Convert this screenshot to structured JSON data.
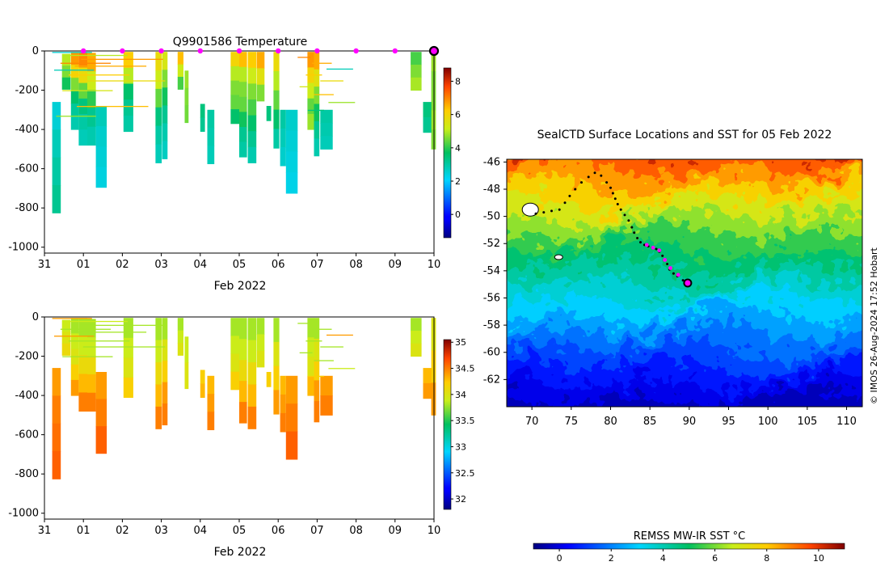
{
  "chart_data": [
    {
      "type": "heatmap",
      "panel": "temperature-profile",
      "title": "Q9901586  Temperature",
      "xlabel": "Feb 2022",
      "ylabel": "",
      "x_tick_labels": [
        "31",
        "01",
        "02",
        "03",
        "04",
        "05",
        "06",
        "07",
        "08",
        "09",
        "10"
      ],
      "x_range_days": [
        0,
        10
      ],
      "y_ticks": [
        0,
        -200,
        -400,
        -600,
        -800,
        -1000
      ],
      "ylim": [
        -1030,
        0
      ],
      "colorbar": {
        "range": [
          -1.4,
          8.8
        ],
        "ticks": [
          0,
          2,
          4,
          6,
          8
        ],
        "colormap": "jet"
      },
      "surfacing_markers_day": [
        1,
        2,
        3,
        4,
        5,
        6,
        7,
        8,
        9
      ],
      "current_position_day": 10,
      "profiles": [
        {
          "t": 0.2,
          "w": 0.22,
          "top": -260,
          "bottom": -825,
          "v": [
            2.5,
            2.8,
            3.0,
            3.2
          ]
        },
        {
          "t": 0.45,
          "w": 0.22,
          "top": -15,
          "bottom": -195,
          "v": [
            5.0,
            4.6,
            3.8
          ]
        },
        {
          "t": 0.68,
          "w": 0.2,
          "top": -5,
          "bottom": -400,
          "v": [
            6.8,
            6.0,
            4.6,
            3.6,
            3.1,
            2.9
          ]
        },
        {
          "t": 0.88,
          "w": 0.22,
          "top": -5,
          "bottom": -480,
          "v": [
            7.0,
            5.8,
            4.4,
            3.4,
            3.0,
            2.8
          ]
        },
        {
          "t": 1.1,
          "w": 0.22,
          "top": -10,
          "bottom": -480,
          "v": [
            6.6,
            5.2,
            4.0,
            3.2,
            2.9
          ]
        },
        {
          "t": 1.32,
          "w": 0.28,
          "top": -280,
          "bottom": -695,
          "v": [
            2.8,
            2.6,
            2.5,
            2.4
          ]
        },
        {
          "t": 2.03,
          "w": 0.25,
          "top": -5,
          "bottom": -410,
          "v": [
            6.2,
            5.0,
            3.6,
            3.2,
            3.0
          ]
        },
        {
          "t": 2.85,
          "w": 0.16,
          "top": -5,
          "bottom": -570,
          "v": [
            5.8,
            5.2,
            4.4,
            3.4,
            3.0,
            2.8
          ]
        },
        {
          "t": 3.02,
          "w": 0.14,
          "top": -5,
          "bottom": -550,
          "v": [
            5.4,
            4.6,
            3.8,
            3.2,
            2.9,
            2.7
          ]
        },
        {
          "t": 3.42,
          "w": 0.15,
          "top": -5,
          "bottom": -195,
          "v": [
            6.4,
            5.2,
            4.2
          ]
        },
        {
          "t": 3.6,
          "w": 0.1,
          "top": -100,
          "bottom": -365,
          "v": [
            4.8,
            4.6,
            4.5
          ]
        },
        {
          "t": 4.0,
          "w": 0.12,
          "top": -270,
          "bottom": -410,
          "v": [
            3.4,
            3.2
          ]
        },
        {
          "t": 4.18,
          "w": 0.18,
          "top": -300,
          "bottom": -575,
          "v": [
            3.0,
            2.9,
            2.8
          ]
        },
        {
          "t": 4.78,
          "w": 0.22,
          "top": -5,
          "bottom": -370,
          "v": [
            6.0,
            5.0,
            4.6,
            4.4,
            3.6
          ]
        },
        {
          "t": 5.0,
          "w": 0.2,
          "top": -5,
          "bottom": -540,
          "v": [
            6.4,
            5.0,
            4.6,
            4.4,
            3.8,
            3.2,
            3.0
          ]
        },
        {
          "t": 5.22,
          "w": 0.22,
          "top": -5,
          "bottom": -570,
          "v": [
            6.2,
            5.2,
            4.6,
            4.2,
            3.6,
            3.2,
            2.9
          ]
        },
        {
          "t": 5.45,
          "w": 0.2,
          "top": -5,
          "bottom": -255,
          "v": [
            6.6,
            5.6,
            4.6
          ]
        },
        {
          "t": 5.7,
          "w": 0.12,
          "top": -280,
          "bottom": -355,
          "v": [
            3.4
          ]
        },
        {
          "t": 5.88,
          "w": 0.15,
          "top": -5,
          "bottom": -495,
          "v": [
            5.8,
            5.0,
            4.4,
            3.6,
            3.0
          ]
        },
        {
          "t": 6.05,
          "w": 0.15,
          "top": -300,
          "bottom": -585,
          "v": [
            3.0,
            2.8,
            2.6
          ]
        },
        {
          "t": 6.2,
          "w": 0.3,
          "top": -300,
          "bottom": -725,
          "v": [
            2.6,
            2.5,
            2.4,
            2.3
          ]
        },
        {
          "t": 6.75,
          "w": 0.18,
          "top": -5,
          "bottom": -400,
          "v": [
            6.8,
            6.0,
            5.2,
            4.4,
            4.8
          ]
        },
        {
          "t": 6.92,
          "w": 0.14,
          "top": -5,
          "bottom": -535,
          "v": [
            6.6,
            5.6,
            4.6,
            3.8,
            3.2,
            2.9
          ]
        },
        {
          "t": 7.08,
          "w": 0.32,
          "top": -300,
          "bottom": -500,
          "v": [
            3.0,
            2.9,
            2.8
          ]
        },
        {
          "t": 9.4,
          "w": 0.28,
          "top": -5,
          "bottom": -200,
          "v": [
            4.2,
            4.6,
            4.9
          ]
        },
        {
          "t": 9.72,
          "w": 0.22,
          "top": -260,
          "bottom": -415,
          "v": [
            3.4,
            3.2
          ]
        },
        {
          "t": 9.93,
          "w": 0.12,
          "top": -5,
          "bottom": -500,
          "v": [
            4.8,
            4.6,
            4.6,
            4.8,
            4.6
          ]
        }
      ],
      "streak_rows": [
        {
          "t": 0.2,
          "w": 3.4,
          "depths": [
            -5,
            -20,
            -40,
            -60,
            -75,
            -95,
            -120,
            -150,
            -200,
            -280,
            -330
          ]
        },
        {
          "t": 6.5,
          "w": 1.1,
          "depths": [
            -30,
            -60,
            -90,
            -120,
            -150,
            -180,
            -220,
            -260,
            -300
          ]
        }
      ]
    },
    {
      "type": "heatmap",
      "panel": "salinity-profile",
      "title": "",
      "xlabel": "Feb 2022",
      "x_tick_labels": [
        "31",
        "01",
        "02",
        "03",
        "04",
        "05",
        "06",
        "07",
        "08",
        "09",
        "10"
      ],
      "y_ticks": [
        0,
        -200,
        -400,
        -600,
        -800,
        -1000
      ],
      "ylim": [
        -1030,
        0
      ],
      "colorbar": {
        "range": [
          31.8,
          35.05
        ],
        "ticks": [
          "32",
          "32.5",
          "33",
          "33.5",
          "34",
          "34.5",
          "35"
        ],
        "colormap": "jet"
      },
      "profiles": [
        {
          "t": 0.2,
          "w": 0.22,
          "top": -260,
          "bottom": -825,
          "v": [
            34.4,
            34.5,
            34.55,
            34.6
          ]
        },
        {
          "t": 0.45,
          "w": 0.22,
          "top": -15,
          "bottom": -195,
          "v": [
            33.9,
            34.0,
            34.1
          ]
        },
        {
          "t": 0.68,
          "w": 0.2,
          "top": -5,
          "bottom": -400,
          "v": [
            33.8,
            33.9,
            34.0,
            34.2,
            34.4
          ]
        },
        {
          "t": 0.88,
          "w": 0.22,
          "top": -5,
          "bottom": -480,
          "v": [
            33.8,
            33.9,
            34.1,
            34.3,
            34.5
          ]
        },
        {
          "t": 1.1,
          "w": 0.22,
          "top": -10,
          "bottom": -480,
          "v": [
            33.8,
            33.9,
            34.1,
            34.3,
            34.5
          ]
        },
        {
          "t": 1.32,
          "w": 0.28,
          "top": -280,
          "bottom": -695,
          "v": [
            34.4,
            34.5,
            34.6
          ]
        },
        {
          "t": 2.03,
          "w": 0.25,
          "top": -5,
          "bottom": -410,
          "v": [
            33.8,
            33.9,
            34.0,
            34.2
          ]
        },
        {
          "t": 2.85,
          "w": 0.16,
          "top": -5,
          "bottom": -570,
          "v": [
            33.8,
            33.9,
            34.1,
            34.3,
            34.5
          ]
        },
        {
          "t": 3.02,
          "w": 0.14,
          "top": -5,
          "bottom": -550,
          "v": [
            33.8,
            34.0,
            34.2,
            34.4,
            34.5
          ]
        },
        {
          "t": 3.42,
          "w": 0.15,
          "top": -5,
          "bottom": -195,
          "v": [
            33.8,
            33.9,
            34.0
          ]
        },
        {
          "t": 3.6,
          "w": 0.1,
          "top": -100,
          "bottom": -365,
          "v": [
            33.9,
            34.0
          ]
        },
        {
          "t": 4.0,
          "w": 0.12,
          "top": -270,
          "bottom": -410,
          "v": [
            34.2,
            34.3
          ]
        },
        {
          "t": 4.18,
          "w": 0.18,
          "top": -300,
          "bottom": -575,
          "v": [
            34.3,
            34.4,
            34.5
          ]
        },
        {
          "t": 4.78,
          "w": 0.22,
          "top": -5,
          "bottom": -370,
          "v": [
            33.8,
            33.9,
            34.0,
            34.2
          ]
        },
        {
          "t": 5.0,
          "w": 0.2,
          "top": -5,
          "bottom": -540,
          "v": [
            33.8,
            33.9,
            34.1,
            34.3,
            34.5
          ]
        },
        {
          "t": 5.22,
          "w": 0.22,
          "top": -5,
          "bottom": -570,
          "v": [
            33.8,
            33.9,
            34.1,
            34.3,
            34.5
          ]
        },
        {
          "t": 5.45,
          "w": 0.2,
          "top": -5,
          "bottom": -255,
          "v": [
            33.8,
            33.9,
            34.0
          ]
        },
        {
          "t": 5.7,
          "w": 0.12,
          "top": -280,
          "bottom": -355,
          "v": [
            34.2
          ]
        },
        {
          "t": 5.88,
          "w": 0.15,
          "top": -5,
          "bottom": -495,
          "v": [
            33.8,
            34.0,
            34.2,
            34.4
          ]
        },
        {
          "t": 6.05,
          "w": 0.15,
          "top": -300,
          "bottom": -585,
          "v": [
            34.3,
            34.4,
            34.5
          ]
        },
        {
          "t": 6.2,
          "w": 0.3,
          "top": -300,
          "bottom": -725,
          "v": [
            34.4,
            34.5,
            34.6
          ]
        },
        {
          "t": 6.75,
          "w": 0.18,
          "top": -5,
          "bottom": -400,
          "v": [
            33.8,
            33.9,
            34.0,
            34.3
          ]
        },
        {
          "t": 6.92,
          "w": 0.14,
          "top": -5,
          "bottom": -535,
          "v": [
            33.8,
            34.0,
            34.2,
            34.4,
            34.5
          ]
        },
        {
          "t": 7.08,
          "w": 0.32,
          "top": -300,
          "bottom": -500,
          "v": [
            34.4,
            34.5
          ]
        },
        {
          "t": 9.4,
          "w": 0.28,
          "top": -5,
          "bottom": -200,
          "v": [
            33.8,
            33.9,
            34.0
          ]
        },
        {
          "t": 9.72,
          "w": 0.22,
          "top": -260,
          "bottom": -415,
          "v": [
            34.3,
            34.4
          ]
        },
        {
          "t": 9.93,
          "w": 0.12,
          "top": -5,
          "bottom": -500,
          "v": [
            34.0,
            34.2,
            34.4
          ]
        }
      ],
      "streak_rows": [
        {
          "t": 0.2,
          "w": 3.4,
          "depths": [
            -5,
            -20,
            -40,
            -60,
            -75,
            -95,
            -120,
            -150,
            -200
          ]
        },
        {
          "t": 6.5,
          "w": 1.1,
          "depths": [
            -30,
            -60,
            -90,
            -120,
            -150,
            -180,
            -220,
            -260,
            -300
          ]
        }
      ]
    },
    {
      "type": "heatmap",
      "panel": "sst-map",
      "title": "SealCTD Surface Locations and SST for 05 Feb 2022",
      "xlabel": "",
      "ylabel": "",
      "x_ticks": [
        70,
        75,
        80,
        85,
        90,
        95,
        100,
        105,
        110
      ],
      "y_ticks": [
        -46,
        -48,
        -50,
        -52,
        -54,
        -56,
        -58,
        -60,
        -62
      ],
      "xlim": [
        66.8,
        112
      ],
      "ylim": [
        -64,
        -45.8
      ],
      "colorbar": {
        "label": "REMSS MW-IR SST °C",
        "range": [
          -1,
          11
        ],
        "ticks": [
          0,
          2,
          4,
          6,
          8,
          10
        ],
        "colormap": "jet"
      },
      "sst_field_description": "Warm (8–10 °C) north of about -49, frontal band 3–6 °C near -50 to -55, cold (-1 to 2 °C) south of -58",
      "track_lon": [
        70.5,
        71.5,
        72.5,
        73.5,
        74.2,
        74.8,
        75.5,
        76.3,
        77.2,
        78.0,
        78.8,
        79.5,
        80.0,
        80.3,
        80.6,
        80.9,
        81.3,
        81.8,
        82.3,
        82.7,
        83.0,
        83.4,
        83.8,
        84.3,
        84.8,
        85.3,
        85.8,
        86.2,
        86.6,
        86.9,
        87.2,
        87.5,
        88.0,
        88.5,
        89.2,
        89.8
      ],
      "track_lat": [
        -49.8,
        -49.7,
        -49.6,
        -49.5,
        -49.0,
        -48.5,
        -48.0,
        -47.5,
        -47.1,
        -46.8,
        -47.0,
        -47.5,
        -47.9,
        -48.3,
        -48.7,
        -49.1,
        -49.5,
        -49.9,
        -50.3,
        -50.8,
        -51.2,
        -51.6,
        -51.9,
        -52.1,
        -52.2,
        -52.3,
        -52.4,
        -52.6,
        -52.9,
        -53.2,
        -53.5,
        -53.9,
        -54.2,
        -54.4,
        -54.7,
        -54.9
      ],
      "highlighted_points_lon": [
        84.6,
        85.4,
        86.2,
        86.9,
        87.6,
        88.6
      ],
      "highlighted_points_lat": [
        -52.1,
        -52.3,
        -52.5,
        -53.2,
        -53.8,
        -54.3
      ],
      "current_position": {
        "lon": 89.8,
        "lat": -54.9
      },
      "land_lon": [
        69.8,
        73.4
      ],
      "land_lat": [
        -49.5,
        -53.0
      ]
    }
  ],
  "credit": "© IMOS 26-Aug-2024 17:52 Hobart"
}
